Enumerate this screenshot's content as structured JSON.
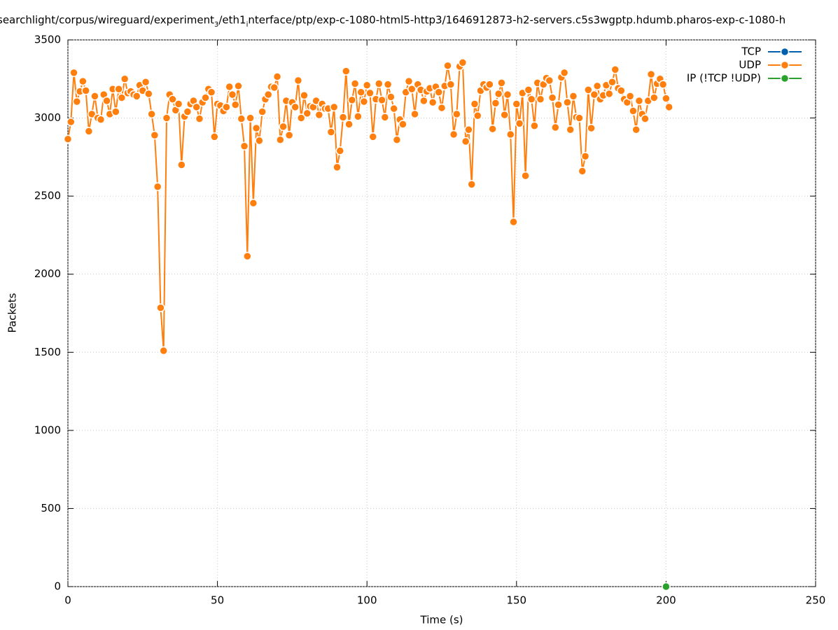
{
  "chart_data": {
    "type": "line",
    "title": "searchlight/corpus/wireguard/experiment_3/eth1_interface/ptp/exp-c-1080-html5-http3/1646912873-h2-servers.c5s3wgptp.hdumb.pharos-exp-c-1080-h",
    "xlabel": "Time (s)",
    "ylabel": "Packets",
    "xlim": [
      0,
      250
    ],
    "xticks": [
      0,
      50,
      100,
      150,
      200,
      250
    ],
    "ylim": [
      0,
      3500
    ],
    "yticks": [
      0,
      500,
      1000,
      1500,
      2000,
      2500,
      3000,
      3500
    ],
    "grid": true,
    "legend": "top-right",
    "series": [
      {
        "name": "TCP",
        "color": "#0060ad",
        "x": [],
        "values": []
      },
      {
        "name": "UDP",
        "color": "#ff7f0e",
        "x": [
          0,
          1,
          2,
          3,
          4,
          5,
          6,
          7,
          8,
          9,
          10,
          11,
          12,
          13,
          14,
          15,
          16,
          17,
          18,
          19,
          20,
          21,
          22,
          23,
          24,
          25,
          26,
          27,
          28,
          29,
          30,
          31,
          32,
          33,
          34,
          35,
          36,
          37,
          38,
          39,
          40,
          41,
          42,
          43,
          44,
          45,
          46,
          47,
          48,
          49,
          50,
          51,
          52,
          53,
          54,
          55,
          56,
          57,
          58,
          59,
          60,
          61,
          62,
          63,
          64,
          65,
          66,
          67,
          68,
          69,
          70,
          71,
          72,
          73,
          74,
          75,
          76,
          77,
          78,
          79,
          80,
          81,
          82,
          83,
          84,
          85,
          86,
          87,
          88,
          89,
          90,
          91,
          92,
          93,
          94,
          95,
          96,
          97,
          98,
          99,
          100,
          101,
          102,
          103,
          104,
          105,
          106,
          107,
          108,
          109,
          110,
          111,
          112,
          113,
          114,
          115,
          116,
          117,
          118,
          119,
          120,
          121,
          122,
          123,
          124,
          125,
          126,
          127,
          128,
          129,
          130,
          131,
          132,
          133,
          134,
          135,
          136,
          137,
          138,
          139,
          140,
          141,
          142,
          143,
          144,
          145,
          146,
          147,
          148,
          149,
          150,
          151,
          152,
          153,
          154,
          155,
          156,
          157,
          158,
          159,
          160,
          161,
          162,
          163,
          164,
          165,
          166,
          167,
          168,
          169,
          170,
          171,
          172,
          173,
          174,
          175,
          176,
          177,
          178,
          179,
          180,
          181,
          182,
          183,
          184,
          185,
          186,
          187,
          188,
          189,
          190,
          191,
          192,
          193,
          194,
          195,
          196,
          197,
          198,
          199,
          200,
          201
        ],
        "values": [
          2865,
          2975,
          3290,
          3105,
          3170,
          3235,
          3175,
          2915,
          3025,
          3140,
          3000,
          2990,
          3150,
          3110,
          3025,
          3185,
          3040,
          3185,
          3130,
          3250,
          3160,
          3170,
          3150,
          3140,
          3210,
          3175,
          3230,
          3155,
          3025,
          2890,
          2560,
          1785,
          1510,
          3000,
          3150,
          3120,
          3050,
          3090,
          2700,
          3010,
          3040,
          3090,
          3110,
          3070,
          2995,
          3100,
          3130,
          3185,
          3165,
          2880,
          3090,
          3080,
          3045,
          3070,
          3200,
          3150,
          3085,
          3205,
          2995,
          2820,
          2115,
          3000,
          2455,
          2935,
          2855,
          3040,
          3120,
          3150,
          3200,
          3195,
          3265,
          2860,
          2945,
          3110,
          2890,
          3100,
          3070,
          3240,
          3000,
          3145,
          3030,
          3075,
          3070,
          3110,
          3020,
          3090,
          3060,
          3060,
          2910,
          3070,
          2685,
          2790,
          3005,
          3300,
          2960,
          3115,
          3220,
          3010,
          3165,
          3105,
          3210,
          3160,
          2880,
          3120,
          3220,
          3115,
          3005,
          3215,
          3135,
          3060,
          2860,
          2990,
          2960,
          3165,
          3235,
          3185,
          3025,
          3215,
          3180,
          3110,
          3170,
          3190,
          3100,
          3200,
          3165,
          3065,
          3205,
          3335,
          3215,
          2895,
          3025,
          3330,
          3355,
          2850,
          2925,
          2575,
          3090,
          3015,
          3175,
          3215,
          3195,
          3215,
          2930,
          3095,
          3155,
          3225,
          3020,
          3150,
          2895,
          2335,
          3090,
          2965,
          3160,
          2630,
          3180,
          3120,
          2950,
          3225,
          3120,
          3215,
          3255,
          3240,
          3130,
          2940,
          3085,
          3260,
          3290,
          3100,
          2925,
          3140,
          3005,
          3000,
          2660,
          2755,
          3180,
          2935,
          3150,
          3205,
          3120,
          3145,
          3210,
          3155,
          3230,
          3310,
          3190,
          3175,
          3120,
          3100,
          3140,
          3045,
          2925,
          3110,
          3025,
          2995,
          3110,
          3280,
          3130,
          3220,
          3250,
          3215,
          3125,
          3070
        ]
      },
      {
        "name": "IP (!TCP  !UDP)",
        "color": "#2ca02c",
        "x": [
          200
        ],
        "values": [
          0
        ]
      }
    ]
  }
}
